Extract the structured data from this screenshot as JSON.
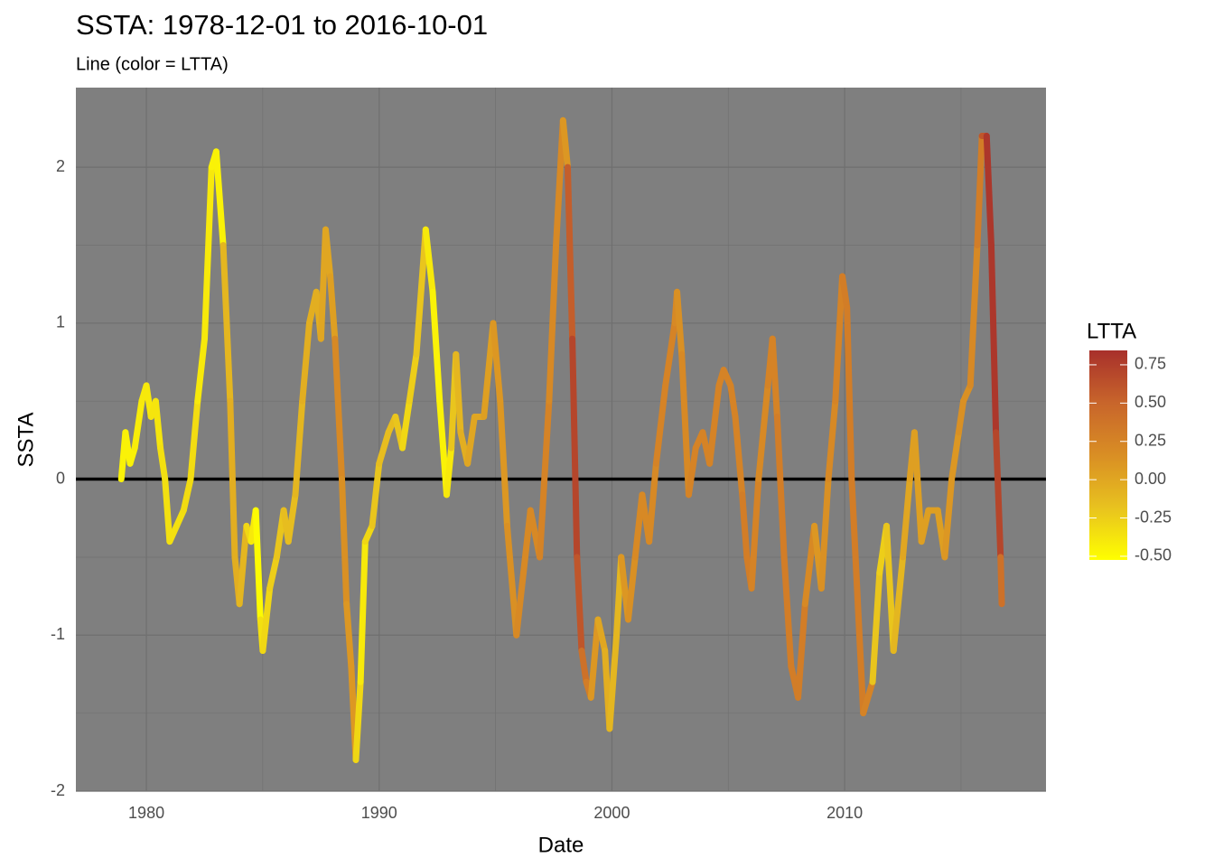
{
  "chart_data": {
    "type": "line",
    "title": "SSTA: 1978-12-01 to 2016-10-01",
    "subtitle": "Line (color = LTTA)",
    "x_label": "Date",
    "y_label": "SSTA",
    "xlim": [
      1976.97,
      2018.65
    ],
    "xticks": [
      1980,
      1990,
      2000,
      2010
    ],
    "xminor": [
      1985,
      1995,
      2005,
      2015
    ],
    "ylim": [
      -2,
      2.51
    ],
    "yticks": [
      -2,
      -1,
      0,
      1,
      2
    ],
    "yminor": [
      -1.5,
      -0.5,
      0.5,
      1.5
    ],
    "hline": 0,
    "grid": true,
    "panel_color": "#7f7f7f",
    "grid_color": "#6f6f6f",
    "x": [
      1978.92,
      1979.1,
      1979.3,
      1979.5,
      1979.8,
      1980.0,
      1980.2,
      1980.4,
      1980.6,
      1980.8,
      1981.0,
      1981.3,
      1981.6,
      1981.9,
      1982.2,
      1982.5,
      1982.8,
      1983.0,
      1983.3,
      1983.6,
      1983.8,
      1984.0,
      1984.3,
      1984.5,
      1984.7,
      1984.9,
      1985.0,
      1985.3,
      1985.6,
      1985.9,
      1986.1,
      1986.4,
      1986.7,
      1987.0,
      1987.3,
      1987.5,
      1987.7,
      1987.9,
      1988.1,
      1988.4,
      1988.6,
      1988.8,
      1989.0,
      1989.2,
      1989.4,
      1989.7,
      1990.0,
      1990.4,
      1990.7,
      1991.0,
      1991.3,
      1991.6,
      1992.0,
      1992.3,
      1992.6,
      1992.9,
      1993.1,
      1993.3,
      1993.5,
      1993.8,
      1994.1,
      1994.5,
      1994.9,
      1995.2,
      1995.5,
      1995.9,
      1996.2,
      1996.5,
      1996.9,
      1997.3,
      1997.6,
      1997.9,
      1998.1,
      1998.3,
      1998.5,
      1998.7,
      1998.9,
      1999.1,
      1999.4,
      1999.7,
      1999.9,
      2000.2,
      2000.4,
      2000.7,
      2001.0,
      2001.3,
      2001.6,
      2001.9,
      2002.3,
      2002.7,
      2002.8,
      2003.0,
      2003.3,
      2003.6,
      2003.9,
      2004.2,
      2004.6,
      2004.8,
      2005.1,
      2005.3,
      2005.6,
      2005.8,
      2006.0,
      2006.3,
      2006.7,
      2006.9,
      2007.1,
      2007.4,
      2007.7,
      2008.0,
      2008.3,
      2008.7,
      2009.0,
      2009.3,
      2009.6,
      2009.9,
      2010.1,
      2010.3,
      2010.6,
      2010.8,
      2011.2,
      2011.5,
      2011.8,
      2012.1,
      2012.5,
      2012.8,
      2013.0,
      2013.3,
      2013.6,
      2014.0,
      2014.3,
      2014.6,
      2014.9,
      2015.1,
      2015.4,
      2015.7,
      2015.9,
      2016.1,
      2016.3,
      2016.5,
      2016.7,
      2016.75
    ],
    "values": [
      0.0,
      0.3,
      0.1,
      0.2,
      0.5,
      0.6,
      0.4,
      0.5,
      0.2,
      0.0,
      -0.4,
      -0.3,
      -0.2,
      0.0,
      0.5,
      0.9,
      2.0,
      2.1,
      1.5,
      0.5,
      -0.5,
      -0.8,
      -0.3,
      -0.4,
      -0.2,
      -0.9,
      -1.1,
      -0.7,
      -0.5,
      -0.2,
      -0.4,
      -0.1,
      0.5,
      1.0,
      1.2,
      0.9,
      1.6,
      1.3,
      0.9,
      0.0,
      -0.8,
      -1.2,
      -1.8,
      -1.3,
      -0.4,
      -0.3,
      0.1,
      0.3,
      0.4,
      0.2,
      0.5,
      0.8,
      1.6,
      1.2,
      0.5,
      -0.1,
      0.2,
      0.8,
      0.3,
      0.1,
      0.4,
      0.4,
      1.0,
      0.5,
      -0.3,
      -1.0,
      -0.6,
      -0.2,
      -0.5,
      0.5,
      1.5,
      2.3,
      2.0,
      0.9,
      -0.5,
      -1.1,
      -1.3,
      -1.4,
      -0.9,
      -1.1,
      -1.6,
      -1.0,
      -0.5,
      -0.9,
      -0.5,
      -0.1,
      -0.4,
      0.1,
      0.6,
      1.0,
      1.2,
      0.8,
      -0.1,
      0.2,
      0.3,
      0.1,
      0.6,
      0.7,
      0.6,
      0.4,
      -0.1,
      -0.5,
      -0.7,
      0.0,
      0.6,
      0.9,
      0.4,
      -0.5,
      -1.2,
      -1.4,
      -0.8,
      -0.3,
      -0.7,
      0.0,
      0.5,
      1.3,
      1.1,
      0.0,
      -0.9,
      -1.5,
      -1.3,
      -0.6,
      -0.3,
      -1.1,
      -0.5,
      0.0,
      0.3,
      -0.4,
      -0.2,
      -0.2,
      -0.5,
      0.0,
      0.3,
      0.5,
      0.6,
      1.5,
      2.2,
      2.2,
      1.5,
      0.3,
      -0.5,
      -0.8
    ],
    "color_values": [
      -0.45,
      -0.45,
      -0.45,
      -0.42,
      -0.4,
      -0.4,
      -0.38,
      -0.38,
      -0.35,
      -0.35,
      -0.35,
      -0.35,
      -0.33,
      -0.33,
      -0.4,
      -0.4,
      -0.45,
      -0.45,
      -0.1,
      -0.05,
      -0.05,
      -0.1,
      -0.3,
      -0.4,
      -0.5,
      -0.35,
      -0.3,
      -0.25,
      -0.2,
      -0.15,
      -0.15,
      -0.1,
      -0.05,
      -0.05,
      -0.05,
      0.0,
      0.0,
      0.05,
      0.2,
      0.15,
      0.1,
      0.1,
      -0.3,
      -0.4,
      -0.3,
      -0.2,
      -0.15,
      -0.15,
      -0.2,
      -0.3,
      -0.25,
      -0.2,
      -0.4,
      -0.45,
      -0.45,
      -0.4,
      -0.2,
      -0.1,
      -0.05,
      0.0,
      0.0,
      0.05,
      0.1,
      0.1,
      0.15,
      0.2,
      0.2,
      0.2,
      0.25,
      0.2,
      0.2,
      0.1,
      0.55,
      0.7,
      0.6,
      0.4,
      0.3,
      0.1,
      0.0,
      -0.05,
      -0.1,
      -0.1,
      0.1,
      0.15,
      0.2,
      0.2,
      0.2,
      0.25,
      0.25,
      0.2,
      0.15,
      0.2,
      0.25,
      0.25,
      0.25,
      0.25,
      0.25,
      0.25,
      0.25,
      0.25,
      0.3,
      0.3,
      0.25,
      0.2,
      0.25,
      0.25,
      0.3,
      0.3,
      0.3,
      0.3,
      0.2,
      0.1,
      0.15,
      0.2,
      0.25,
      0.3,
      0.3,
      0.3,
      0.3,
      0.25,
      -0.2,
      -0.25,
      -0.2,
      -0.1,
      0.0,
      0.05,
      0.05,
      0.05,
      0.05,
      0.05,
      0.1,
      0.1,
      0.15,
      0.15,
      0.2,
      0.3,
      0.6,
      0.8,
      0.8,
      0.7,
      0.4,
      0.35
    ],
    "color_scale": {
      "title": "LTTA",
      "limits": [
        -0.524,
        0.844
      ],
      "colors": [
        "#ffff00",
        "#e8c21f",
        "#d98e24",
        "#c8652b",
        "#a8302b"
      ],
      "ticks": [
        0.75,
        {
          "value": 0.5,
          "label": "0.50"
        },
        0.25,
        {
          "value": 0,
          "label": "0.00"
        },
        -0.25,
        {
          "value": -0.5,
          "label": "-0.50"
        }
      ]
    }
  }
}
